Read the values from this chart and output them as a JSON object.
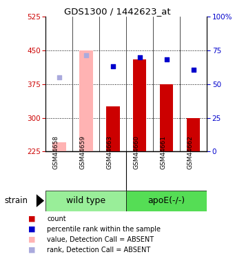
{
  "title": "GDS1300 / 1442623_at",
  "samples": [
    "GSM44658",
    "GSM44659",
    "GSM44663",
    "GSM44660",
    "GSM44661",
    "GSM44662"
  ],
  "group_labels": [
    "wild type",
    "apoE(-/-)"
  ],
  "ylim_left": [
    225,
    525
  ],
  "ylim_right": [
    0,
    100
  ],
  "yticks_left": [
    225,
    300,
    375,
    450,
    525
  ],
  "yticks_right": [
    0,
    25,
    50,
    75,
    100
  ],
  "bar_values": [
    null,
    null,
    325,
    430,
    375,
    300
  ],
  "bar_absent": [
    245,
    450,
    null,
    null,
    null,
    null
  ],
  "rank_values": [
    null,
    null,
    415,
    435,
    430,
    407
  ],
  "rank_absent": [
    390,
    440,
    null,
    null,
    null,
    null
  ],
  "bar_color": "#cc0000",
  "bar_absent_color": "#ffb3b3",
  "rank_color": "#0000cc",
  "rank_absent_color": "#aaaadd",
  "xlabel_color": "#cc0000",
  "ylabel_right_color": "#0000cc",
  "background_color": "#ffffff",
  "sample_bg_color": "#cccccc",
  "group_bg_color_wt": "#99ee99",
  "group_bg_color_apoe": "#55dd55",
  "grid_dotted_yvals": [
    300,
    375,
    450
  ]
}
